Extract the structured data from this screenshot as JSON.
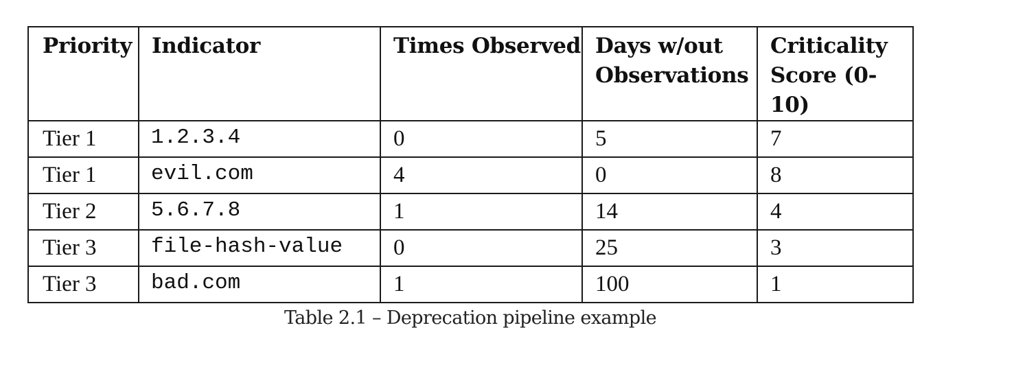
{
  "table": {
    "headers": {
      "priority": "Priority",
      "indicator": "Indicator",
      "times_observed": "Times Observed",
      "days_line1": "Days w/out",
      "days_line2": "Observations",
      "criticality_line1": "Criticality",
      "criticality_line2": "Score (0-10)"
    },
    "rows": [
      {
        "priority": "Tier 1",
        "indicator": "1.2.3.4",
        "times_observed": "0",
        "days_without": "5",
        "criticality": "7"
      },
      {
        "priority": "Tier 1",
        "indicator": "evil.com",
        "times_observed": "4",
        "days_without": "0",
        "criticality": "8"
      },
      {
        "priority": "Tier 2",
        "indicator": "5.6.7.8",
        "times_observed": "1",
        "days_without": "14",
        "criticality": "4"
      },
      {
        "priority": "Tier 3",
        "indicator": "file-hash-value",
        "times_observed": "0",
        "days_without": "25",
        "criticality": "3"
      },
      {
        "priority": "Tier 3",
        "indicator": "bad.com",
        "times_observed": "1",
        "days_without": "100",
        "criticality": "1"
      }
    ]
  },
  "caption": "Table 2.1 – Deprecation pipeline example"
}
